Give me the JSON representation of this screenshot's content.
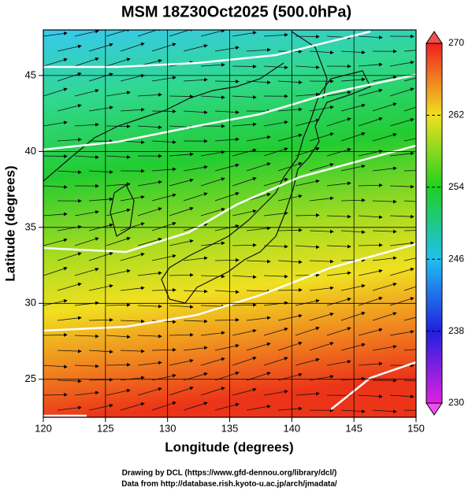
{
  "title": "MSM 18Z30Oct2025 (500.0hPa)",
  "x_axis": {
    "label": "Longitude (degrees)",
    "lim": [
      120,
      150
    ],
    "ticks": [
      120,
      125,
      130,
      135,
      140,
      145,
      150
    ]
  },
  "y_axis": {
    "label": "Latitude  (degrees)",
    "lim": [
      22.5,
      48
    ],
    "ticks": [
      25,
      30,
      35,
      40,
      45
    ]
  },
  "colorbar": {
    "lim": [
      230,
      270
    ],
    "ticks": [
      230,
      238,
      246,
      254,
      262,
      270
    ]
  },
  "credits": [
    "Drawing by DCL (https://www.gfd-dennou.org/library/dcl/)",
    "Data from http://database.rish.kyoto-u.ac.jp/arch/jmadata/"
  ]
}
